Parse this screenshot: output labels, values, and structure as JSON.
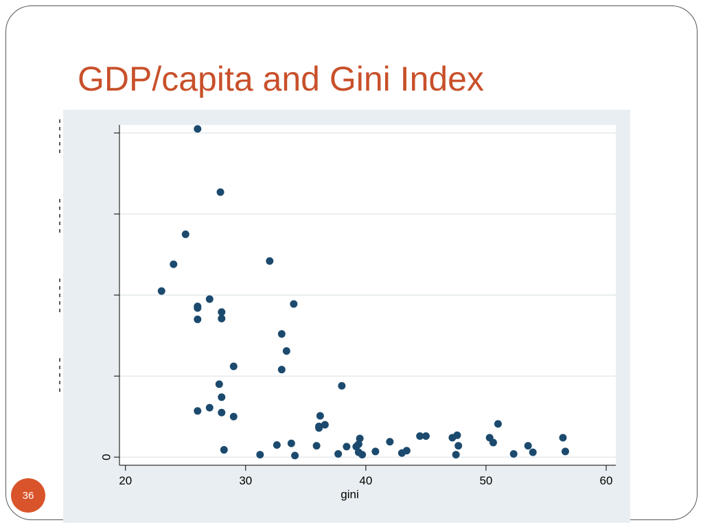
{
  "slide": {
    "title": "GDP/capita and Gini Index",
    "page_number": "36"
  },
  "colors": {
    "title": "#c8502a",
    "marker": "#1c4a6e",
    "chart_background": "#e8eef1",
    "plot_background": "#ffffff",
    "badge": "#d9542a"
  },
  "chart_data": {
    "type": "scatter",
    "xlabel": "gini",
    "ylabel": "",
    "xlim": [
      19.5,
      60.8
    ],
    "ylim": [
      -5000,
      205000
    ],
    "x_ticks": [
      20,
      30,
      40,
      50,
      60
    ],
    "y_ticks": [
      0,
      50000,
      100000,
      150000,
      200000
    ],
    "y_tick_labels": [
      "0",
      "",
      "",
      "",
      ""
    ],
    "grid": "horizontal",
    "legend": "none",
    "series": [
      {
        "points": [
          [
            26.0,
            202500
          ],
          [
            27.9,
            163500
          ],
          [
            25.0,
            137500
          ],
          [
            24.0,
            119000
          ],
          [
            32.0,
            121000
          ],
          [
            23.0,
            102500
          ],
          [
            27.0,
            97500
          ],
          [
            26.0,
            93000
          ],
          [
            26.0,
            92000
          ],
          [
            34.0,
            94500
          ],
          [
            28.0,
            89500
          ],
          [
            26.0,
            85000
          ],
          [
            28.0,
            85500
          ],
          [
            33.0,
            76000
          ],
          [
            33.4,
            65500
          ],
          [
            29.0,
            56000
          ],
          [
            33.0,
            54000
          ],
          [
            38.0,
            44000
          ],
          [
            27.8,
            45000
          ],
          [
            28.0,
            37000
          ],
          [
            27.0,
            30500
          ],
          [
            26.0,
            28500
          ],
          [
            28.0,
            27500
          ],
          [
            29.0,
            25000
          ],
          [
            36.2,
            25500
          ],
          [
            36.1,
            19000
          ],
          [
            36.6,
            20000
          ],
          [
            36.1,
            18000
          ],
          [
            51.0,
            20500
          ],
          [
            28.2,
            4500
          ],
          [
            31.2,
            1500
          ],
          [
            32.6,
            7500
          ],
          [
            33.8,
            8500
          ],
          [
            34.1,
            1000
          ],
          [
            35.9,
            7000
          ],
          [
            37.7,
            2000
          ],
          [
            38.4,
            6500
          ],
          [
            39.2,
            6500
          ],
          [
            39.4,
            8000
          ],
          [
            39.5,
            11500
          ],
          [
            39.4,
            3000
          ],
          [
            39.7,
            1500
          ],
          [
            40.8,
            3500
          ],
          [
            42.0,
            9500
          ],
          [
            43.0,
            2500
          ],
          [
            43.4,
            4000
          ],
          [
            44.5,
            13000
          ],
          [
            45.0,
            13000
          ],
          [
            47.2,
            12000
          ],
          [
            47.6,
            13500
          ],
          [
            47.5,
            1500
          ],
          [
            47.7,
            7000
          ],
          [
            50.3,
            12000
          ],
          [
            50.6,
            9000
          ],
          [
            52.3,
            2000
          ],
          [
            53.5,
            7000
          ],
          [
            53.9,
            3000
          ],
          [
            56.4,
            12000
          ],
          [
            56.6,
            3500
          ]
        ]
      }
    ]
  }
}
